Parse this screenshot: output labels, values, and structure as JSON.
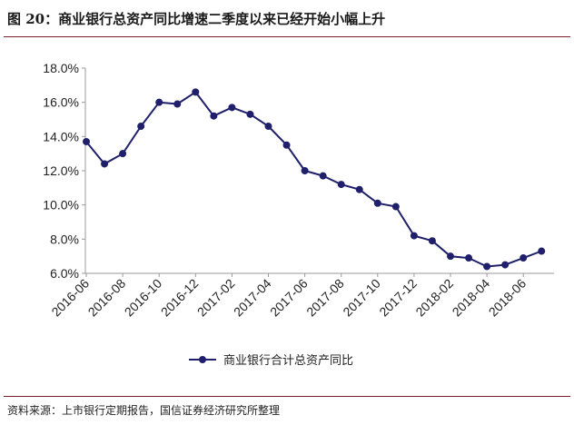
{
  "figure": {
    "title": "图 20：商业银行总资产同比增速二季度以来已经开始小幅上升",
    "source": "资料来源：上市银行定期报告，国信证券经济研究所整理"
  },
  "colors": {
    "series": "#1f1f6b",
    "rule": "#7a1f2b",
    "axis": "#999999"
  },
  "chart_data": {
    "type": "line",
    "title": "",
    "xlabel": "",
    "ylabel": "",
    "ylim": [
      0.06,
      0.18
    ],
    "yticks": [
      "18.0%",
      "16.0%",
      "14.0%",
      "12.0%",
      "10.0%",
      "8.0%",
      "6.0%"
    ],
    "ytick_values": [
      0.18,
      0.16,
      0.14,
      0.12,
      0.1,
      0.08,
      0.06
    ],
    "xtick_labels": [
      "2016-06",
      "2016-08",
      "2016-10",
      "2016-12",
      "2017-02",
      "2017-04",
      "2017-06",
      "2017-08",
      "2017-10",
      "2017-12",
      "2018-02",
      "2018-04",
      "2018-06"
    ],
    "grid": false,
    "legend_position": "bottom",
    "x": [
      "2016-06",
      "2016-07",
      "2016-08",
      "2016-09",
      "2016-10",
      "2016-11",
      "2016-12",
      "2017-01",
      "2017-02",
      "2017-03",
      "2017-04",
      "2017-05",
      "2017-06",
      "2017-07",
      "2017-08",
      "2017-09",
      "2017-10",
      "2017-11",
      "2017-12",
      "2018-01",
      "2018-02",
      "2018-03",
      "2018-04",
      "2018-05",
      "2018-06",
      "2018-07"
    ],
    "series": [
      {
        "name": "商业银行合计总资产同比",
        "values": [
          0.137,
          0.124,
          0.13,
          0.146,
          0.16,
          0.159,
          0.166,
          0.152,
          0.157,
          0.153,
          0.146,
          0.135,
          0.12,
          0.117,
          0.112,
          0.109,
          0.101,
          0.099,
          0.082,
          0.079,
          0.07,
          0.069,
          0.064,
          0.065,
          0.069,
          0.073
        ]
      }
    ]
  }
}
